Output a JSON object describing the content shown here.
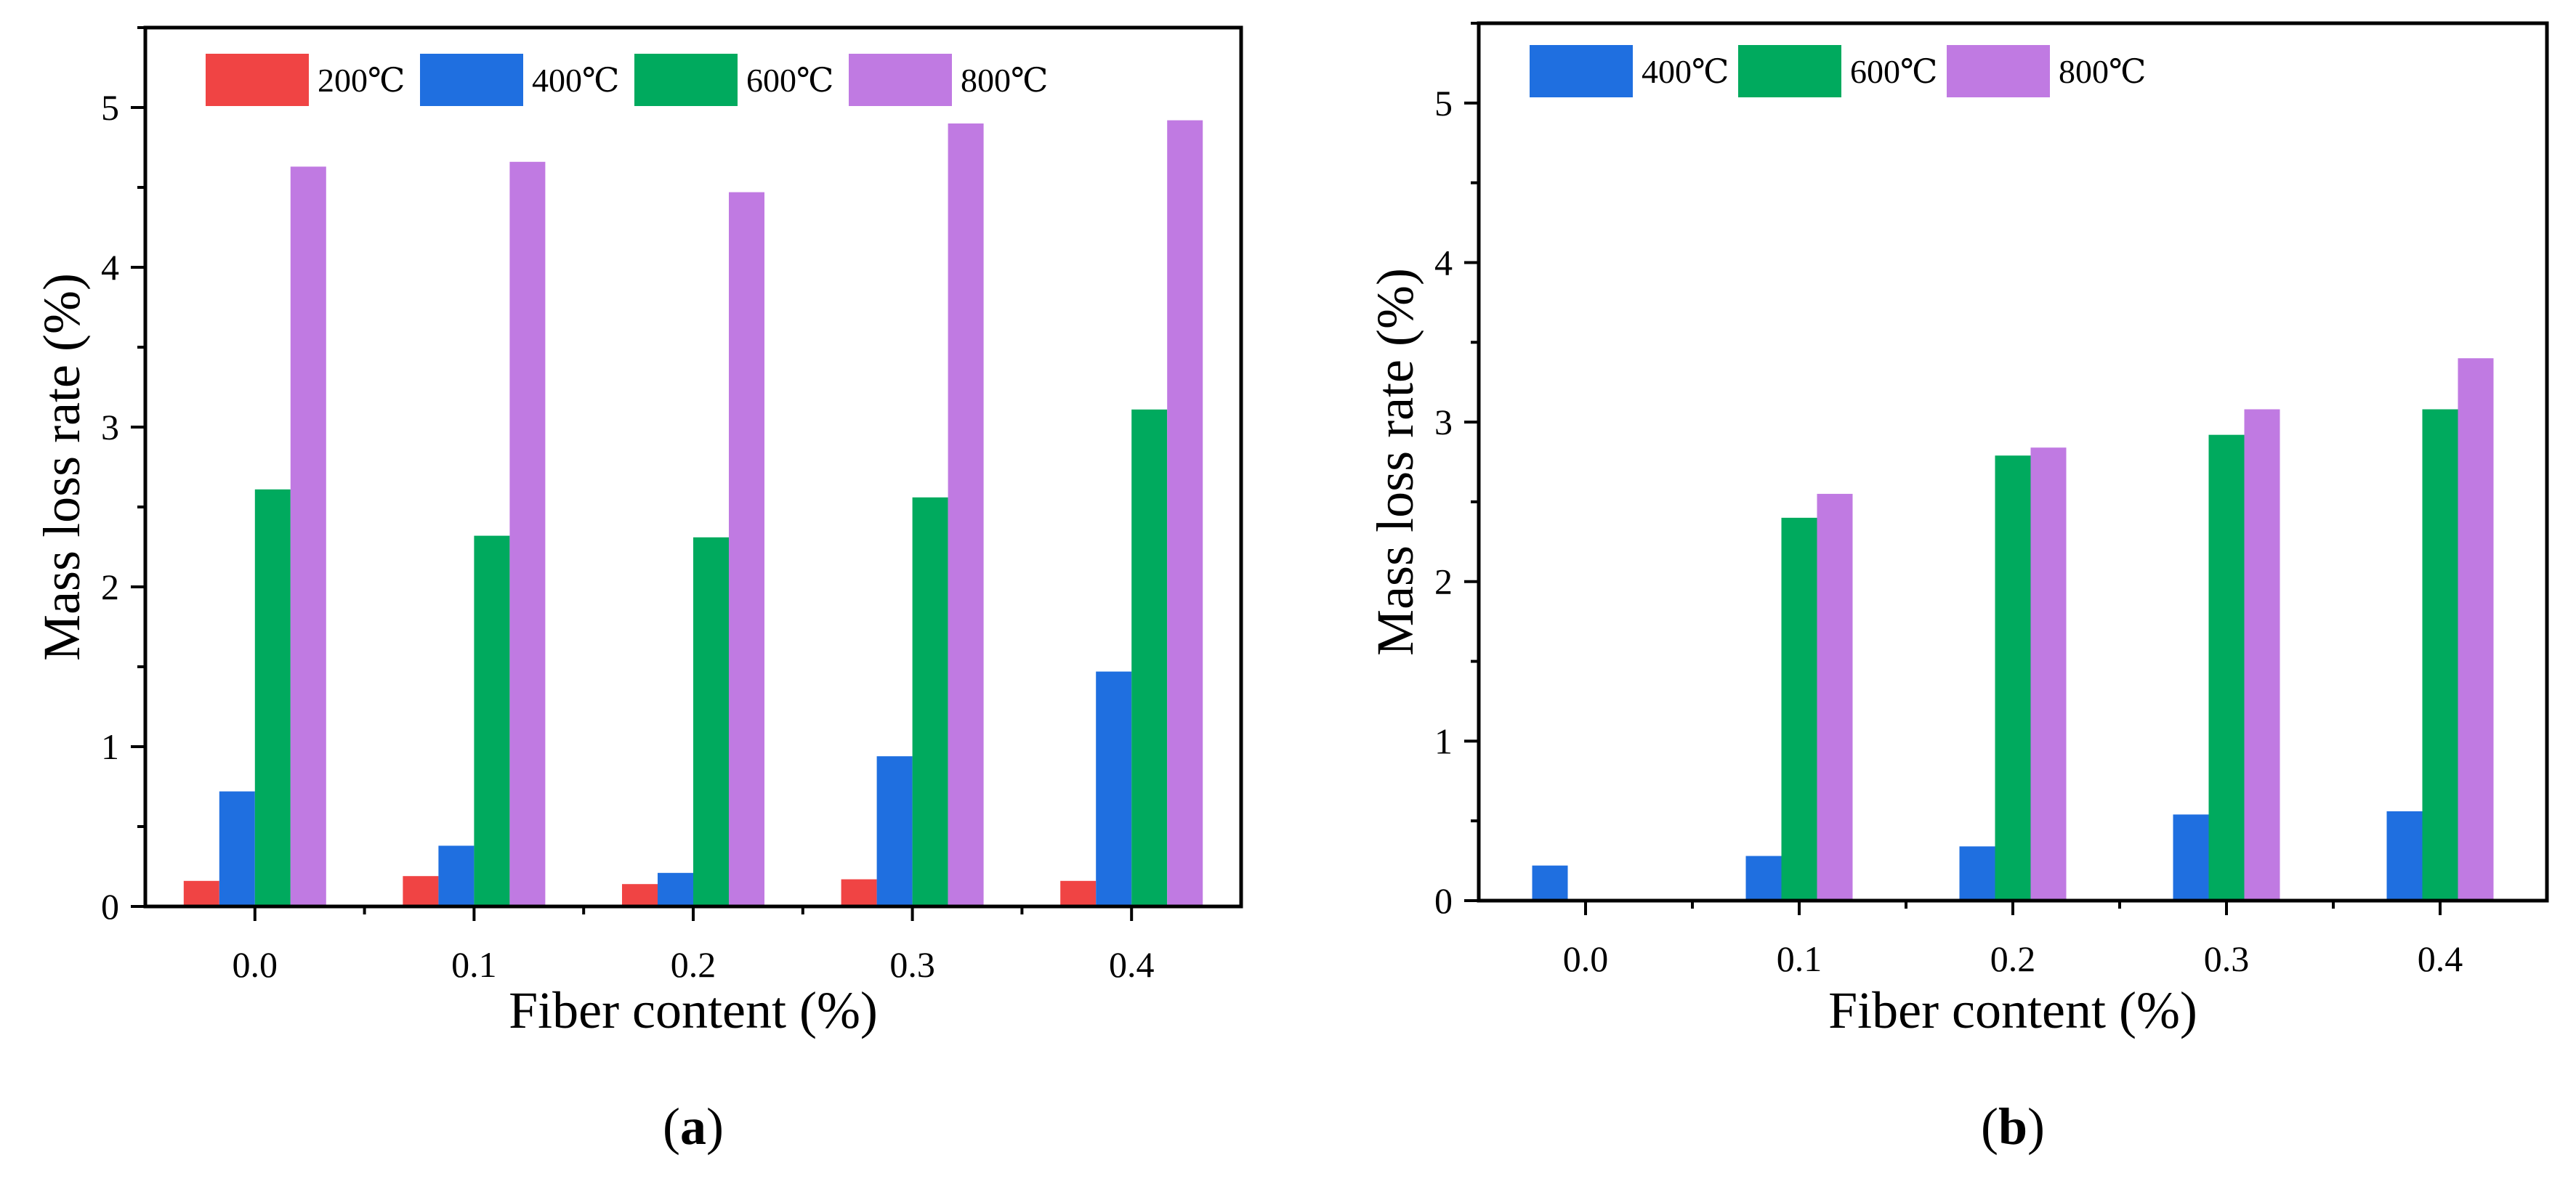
{
  "chart_data": [
    {
      "type": "bar",
      "panel_label": "a",
      "xlabel": "Fiber content (%)",
      "ylabel": "Mass loss rate (%)",
      "categories": [
        "0.0",
        "0.1",
        "0.2",
        "0.3",
        "0.4"
      ],
      "yticks": [
        "0",
        "1",
        "2",
        "3",
        "4",
        "5"
      ],
      "ylim": [
        0,
        5.5
      ],
      "legend_position": "top",
      "series": [
        {
          "name": "200℃",
          "color": "#f04444",
          "values": [
            0.16,
            0.19,
            0.14,
            0.17,
            0.16
          ]
        },
        {
          "name": "400℃",
          "color": "#1f6fe0",
          "values": [
            0.72,
            0.38,
            0.21,
            0.94,
            1.47
          ]
        },
        {
          "name": "600℃",
          "color": "#00aa5e",
          "values": [
            2.61,
            2.32,
            2.31,
            2.56,
            3.11
          ]
        },
        {
          "name": "800℃",
          "color": "#c07ae2",
          "values": [
            4.63,
            4.66,
            4.47,
            4.9,
            4.92
          ]
        }
      ]
    },
    {
      "type": "bar",
      "panel_label": "b",
      "xlabel": "Fiber content (%)",
      "ylabel": "Mass loss rate (%)",
      "categories": [
        "0.0",
        "0.1",
        "0.2",
        "0.3",
        "0.4"
      ],
      "yticks": [
        "0",
        "1",
        "2",
        "3",
        "4",
        "5"
      ],
      "ylim": [
        0,
        5.5
      ],
      "legend_position": "top",
      "series": [
        {
          "name": "400℃",
          "color": "#1f6fe0",
          "values": [
            0.22,
            0.28,
            0.34,
            0.54,
            0.56
          ]
        },
        {
          "name": "600℃",
          "color": "#00aa5e",
          "values": [
            0,
            2.4,
            2.79,
            2.92,
            3.08
          ]
        },
        {
          "name": "800℃",
          "color": "#c07ae2",
          "values": [
            0,
            2.55,
            2.84,
            3.08,
            3.4
          ]
        }
      ]
    }
  ]
}
